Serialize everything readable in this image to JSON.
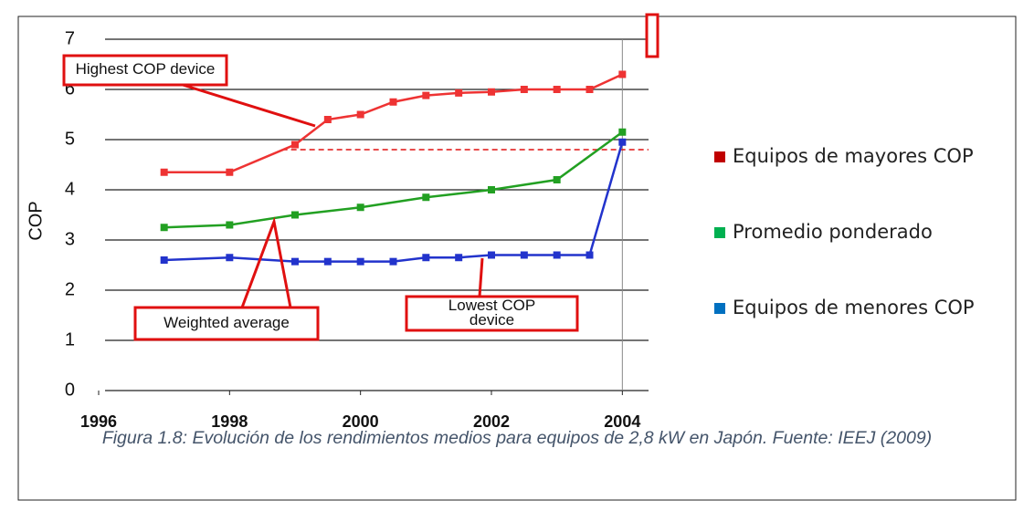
{
  "chart_data": {
    "type": "line",
    "y_label": "COP",
    "xlim": [
      1996,
      2004.4
    ],
    "xticks": [
      1996,
      1998,
      2000,
      2002,
      2004
    ],
    "ylim": [
      0,
      7
    ],
    "yticks": [
      0,
      1,
      2,
      3,
      4,
      5,
      6,
      7
    ],
    "grid": true,
    "legend": "right",
    "series": [
      {
        "name": "Equipos de mayores COP",
        "color": "#ee3333",
        "x": [
          1997,
          1998,
          1999,
          1999.5,
          2000,
          2000.5,
          2001,
          2001.5,
          2002,
          2002.5,
          2003,
          2003.5,
          2004
        ],
        "values": [
          4.35,
          4.35,
          4.9,
          5.4,
          5.5,
          5.75,
          5.88,
          5.93,
          5.95,
          6.0,
          6.0,
          6.0,
          6.3
        ]
      },
      {
        "name": "Promedio ponderado",
        "color": "#22a022",
        "x": [
          1997,
          1998,
          1999,
          2000,
          2001,
          2002,
          2003,
          2004
        ],
        "values": [
          3.25,
          3.3,
          3.5,
          3.65,
          3.85,
          4.0,
          4.2,
          5.15
        ]
      },
      {
        "name": "Equipos de menores COP",
        "color": "#2233cc",
        "x": [
          1997,
          1998,
          1999,
          1999.5,
          2000,
          2000.5,
          2001,
          2001.5,
          2002,
          2002.5,
          2003,
          2003.5,
          2004
        ],
        "values": [
          2.6,
          2.65,
          2.57,
          2.57,
          2.57,
          2.57,
          2.65,
          2.65,
          2.7,
          2.7,
          2.7,
          2.7,
          4.95
        ]
      }
    ],
    "legend_colors": [
      "#c00000",
      "#00b050",
      "#0070c0"
    ],
    "reference_line": {
      "value": 4.8,
      "from": 1998.8
    },
    "annotations": [
      "Highest COP device",
      "Weighted average",
      "Lowest COP device"
    ],
    "caption": "Figura 1.8: Evolución de los rendimientos medios para equipos de 2,8 kW en Japón. Fuente: IEEJ (2009)"
  }
}
